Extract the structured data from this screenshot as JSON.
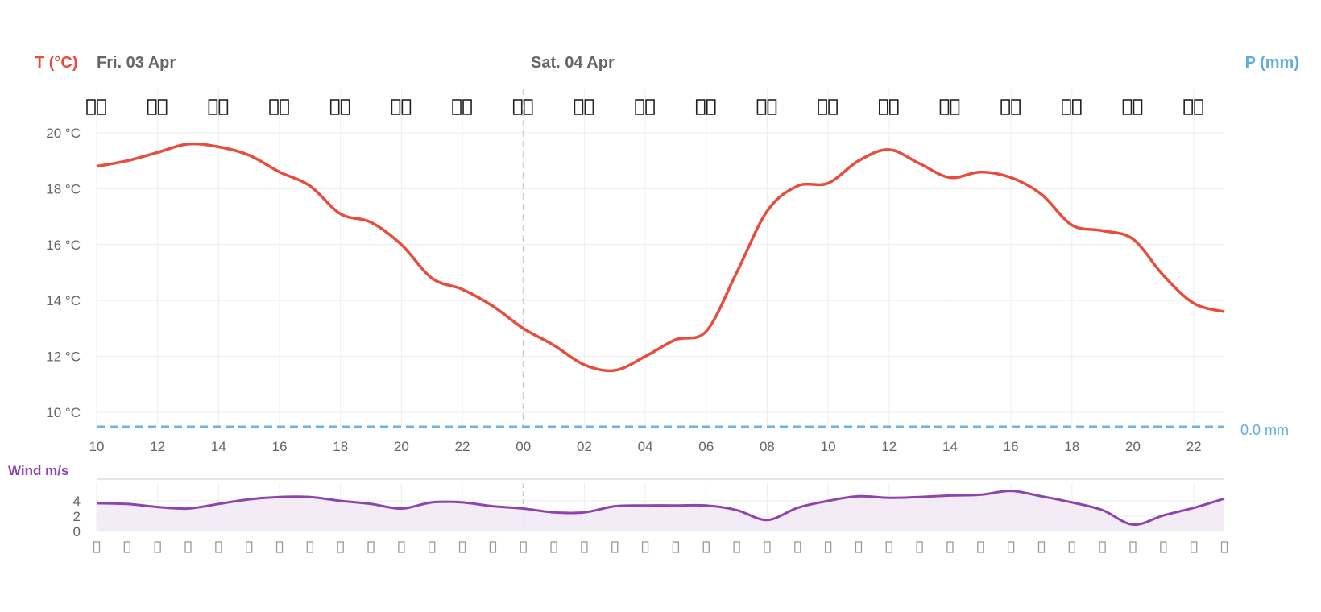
{
  "chart_data": [
    {
      "type": "line",
      "title": "Temperature",
      "y_axis_title": "T (°C)",
      "y2_axis_title": "P (mm)",
      "day_labels": [
        {
          "hour": 10,
          "label": "Fri. 03 Apr"
        },
        {
          "hour": 24,
          "label": "Sat. 04 Apr"
        }
      ],
      "x_tick_labels": [
        "10",
        "12",
        "14",
        "16",
        "18",
        "20",
        "22",
        "00",
        "02",
        "04",
        "06",
        "08",
        "10",
        "12",
        "14",
        "16",
        "18",
        "20",
        "22"
      ],
      "y_tick_labels": [
        "10 °C",
        "12 °C",
        "14 °C",
        "16 °C",
        "18 °C",
        "20 °C"
      ],
      "y_ticks": [
        10,
        12,
        14,
        16,
        18,
        20
      ],
      "ylim": [
        9.5,
        20
      ],
      "x_hours_from": 10,
      "x_hours_to": 47,
      "grid": true,
      "series": [
        {
          "name": "Temperature",
          "unit": "°C",
          "color": "#e74c3c",
          "values": [
            18.8,
            19.0,
            19.3,
            19.6,
            19.5,
            19.2,
            18.6,
            18.1,
            17.1,
            16.8,
            16.0,
            14.8,
            14.4,
            13.8,
            13.0,
            12.4,
            11.7,
            11.5,
            12.0,
            12.6,
            12.9,
            15.0,
            17.2,
            18.1,
            18.2,
            19.0,
            19.4,
            18.9,
            18.4,
            18.6,
            18.4,
            17.8,
            16.7,
            16.5,
            16.2,
            14.9,
            13.9,
            13.6
          ]
        },
        {
          "name": "Precipitation",
          "unit": "mm",
          "color": "#6cb4e8",
          "value": 0.0,
          "label": "0.0 mm"
        }
      ],
      "midnight_divider_hour": 24,
      "weather_symbol_icon": "missing-glyph-icon",
      "weather_symbol_count": 19
    },
    {
      "type": "area",
      "title": "Wind m/s",
      "y_tick_labels": [
        "0",
        "2",
        "4"
      ],
      "y_ticks": [
        0,
        2,
        4
      ],
      "ylim": [
        0,
        6.5
      ],
      "color": "#8e44ad",
      "fill": "#f1e9f6",
      "values": [
        3.7,
        3.6,
        3.2,
        3.0,
        3.6,
        4.2,
        4.5,
        4.5,
        4.0,
        3.6,
        3.0,
        3.8,
        3.8,
        3.3,
        3.0,
        2.5,
        2.5,
        3.3,
        3.4,
        3.4,
        3.4,
        2.8,
        1.5,
        3.1,
        4.0,
        4.6,
        4.4,
        4.5,
        4.7,
        4.8,
        5.3,
        4.6,
        3.8,
        2.8,
        0.9,
        2.1,
        3.1,
        4.3
      ],
      "wind_direction_icon": "missing-glyph-icon"
    }
  ],
  "colors": {
    "temp": "#e74c3c",
    "precip": "#5dade2",
    "wind": "#8e44ad",
    "label": "#666666"
  }
}
